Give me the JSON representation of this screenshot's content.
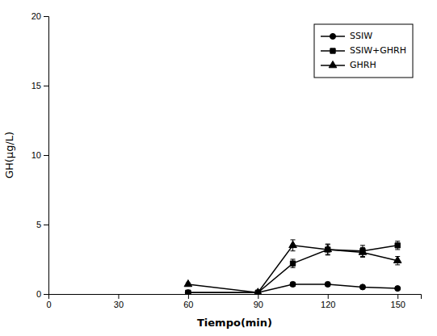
{
  "chart_data": {
    "type": "line",
    "xlabel": "Tiempo(min)",
    "ylabel": "GH(μg/L)",
    "xlim": [
      0,
      160
    ],
    "ylim": [
      0,
      20
    ],
    "xticks": [
      0,
      30,
      60,
      90,
      120,
      150
    ],
    "yticks": [
      0,
      5,
      10,
      15,
      20
    ],
    "x": [
      60,
      90,
      105,
      120,
      135,
      150
    ],
    "series": [
      {
        "name": "SSIW",
        "color": "#000000",
        "marker": "circle",
        "values": [
          0.1,
          0.1,
          0.7,
          0.7,
          0.5,
          0.4
        ],
        "errors": [
          0.05,
          0.05,
          0.15,
          0.15,
          0.1,
          0.1
        ]
      },
      {
        "name": "SSIW+GHRH",
        "color": "#000000",
        "marker": "square",
        "values": [
          0.1,
          0.1,
          2.2,
          3.2,
          3.1,
          3.5
        ],
        "errors": [
          0.05,
          0.05,
          0.3,
          0.4,
          0.4,
          0.3
        ]
      },
      {
        "name": "GHRH",
        "color": "#000000",
        "marker": "triangle",
        "values": [
          0.7,
          0.1,
          3.5,
          3.2,
          3.0,
          2.4
        ],
        "errors": [
          0.1,
          0.05,
          0.4,
          0.35,
          0.35,
          0.3
        ]
      }
    ],
    "legend": "upper right",
    "grid": false
  }
}
